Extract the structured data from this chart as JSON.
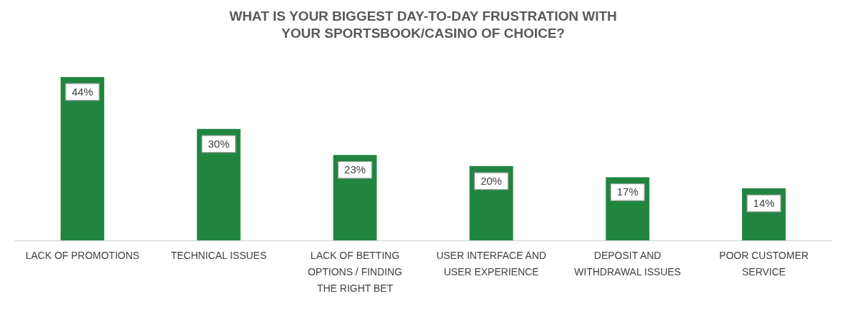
{
  "chart_data": {
    "type": "bar",
    "title": "WHAT IS YOUR BIGGEST DAY-TO-DAY FRUSTRATION WITH YOUR SPORTSBOOK/CASINO OF CHOICE?",
    "categories": [
      "LACK OF PROMOTIONS",
      "TECHNICAL ISSUES",
      "LACK OF BETTING OPTIONS / FINDING THE RIGHT BET",
      "USER INTERFACE AND USER EXPERIENCE",
      "DEPOSIT AND WITHDRAWAL ISSUES",
      "POOR CUSTOMER SERVICE"
    ],
    "values": [
      44,
      30,
      23,
      20,
      17,
      14
    ],
    "value_labels": [
      "44%",
      "30%",
      "23%",
      "20%",
      "17%",
      "14%"
    ],
    "color": "#218540"
  }
}
